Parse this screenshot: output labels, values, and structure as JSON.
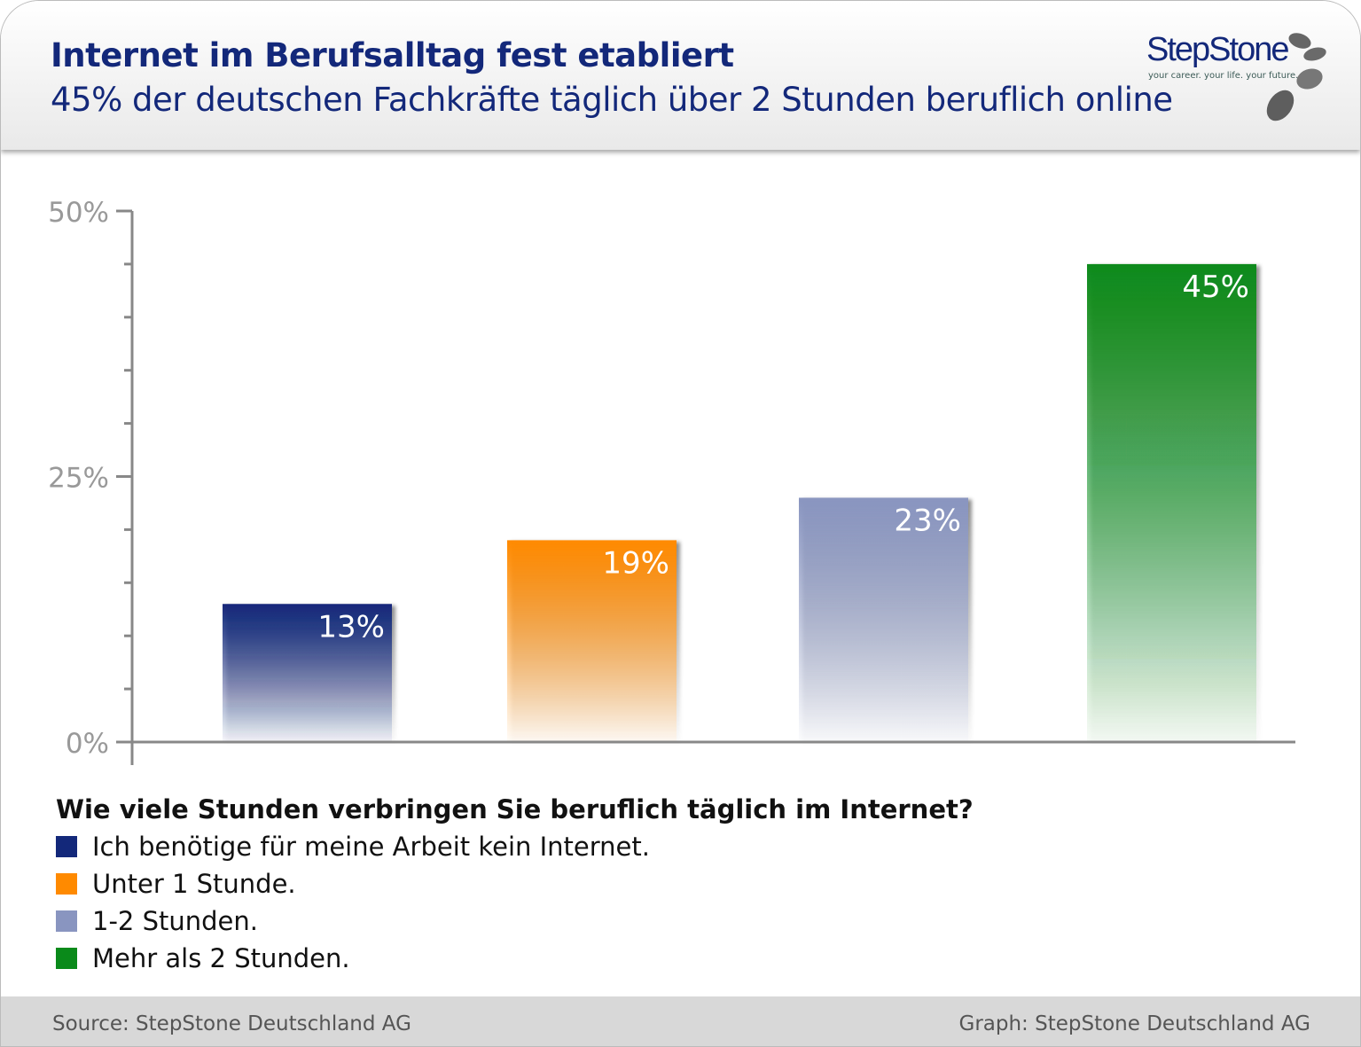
{
  "header": {
    "title": "Internet im Berufsalltag fest etabliert",
    "subtitle": "45% der deutschen Fachkräfte täglich über 2 Stunden beruflich online"
  },
  "logo": {
    "wordmark": "StepStone",
    "tagline": "your career. your life. your future."
  },
  "chart_data": {
    "type": "bar",
    "title": "Wie viele Stunden verbringen Sie beruflich täglich im Internet?",
    "categories": [
      "Ich benötige für meine Arbeit kein Internet.",
      "Unter 1 Stunde.",
      "1-2 Stunden.",
      "Mehr als 2 Stunden."
    ],
    "values": [
      13,
      19,
      23,
      45
    ],
    "data_labels": [
      "13%",
      "19%",
      "23%",
      "45%"
    ],
    "colors": [
      "#13287a",
      "#ff8a00",
      "#8995c0",
      "#0a8a1a"
    ],
    "ylim": [
      0,
      50
    ],
    "yticks": [
      0,
      25,
      50
    ],
    "ytick_labels": [
      "0%",
      "25%",
      "50%"
    ],
    "minor_tick_step": 5,
    "grid": false,
    "legend": "bottom-left"
  },
  "footer": {
    "source": "Source: StepStone Deutschland AG",
    "graph": "Graph: StepStone Deutschland AG"
  }
}
